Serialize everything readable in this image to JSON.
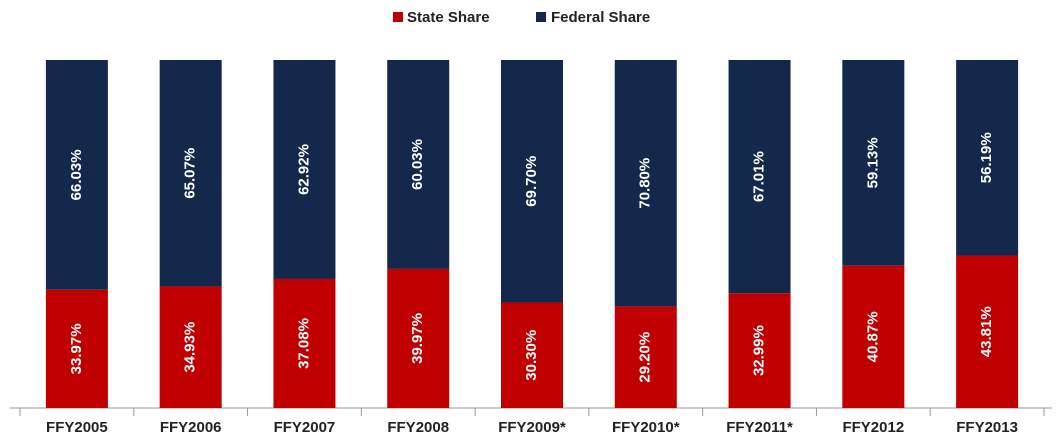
{
  "chart_data": {
    "type": "stacked_bar",
    "categories": [
      "FFY2005",
      "FFY2006",
      "FFY2007",
      "FFY2008",
      "FFY2009*",
      "FFY2010*",
      "FFY2011*",
      "FFY2012",
      "FFY2013"
    ],
    "series": [
      {
        "name": "State Share",
        "color": "#c00000",
        "values": [
          33.97,
          34.93,
          37.08,
          39.97,
          30.3,
          29.2,
          32.99,
          40.87,
          43.81
        ],
        "value_labels": [
          "33.97%",
          "34.93%",
          "37.08%",
          "39.97%",
          "30.30%",
          "29.20%",
          "32.99%",
          "40.87%",
          "43.81%"
        ]
      },
      {
        "name": "Federal Share",
        "color": "#14284b",
        "values": [
          66.03,
          65.07,
          62.92,
          60.03,
          69.7,
          70.8,
          67.01,
          59.13,
          56.19
        ],
        "value_labels": [
          "66.03%",
          "65.07%",
          "62.92%",
          "60.03%",
          "69.70%",
          "70.80%",
          "67.01%",
          "59.13%",
          "56.19%"
        ]
      }
    ],
    "legend": "top"
  }
}
